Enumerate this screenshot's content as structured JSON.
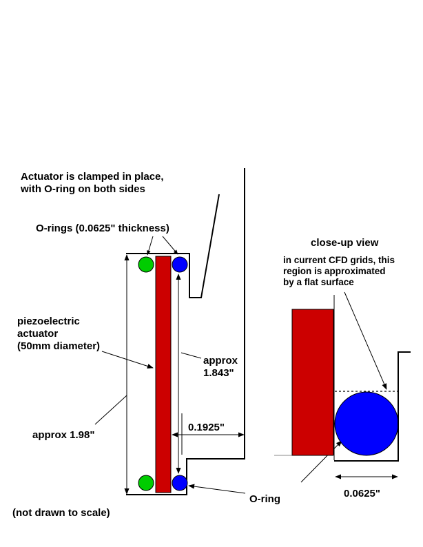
{
  "labels": {
    "clamp_line1": "Actuator is clamped in place,",
    "clamp_line2": "with O-ring on both sides",
    "orings_thickness": "O-rings (0.0625\" thickness)",
    "piezo_line1": "piezoelectric",
    "piezo_line2": "actuator",
    "piezo_line3": "(50mm diameter)",
    "approx_line1": "approx",
    "approx_line2": "1.843\"",
    "gap": "0.1925\"",
    "total_height": "approx 1.98\"",
    "not_to_scale": "(not drawn to scale)",
    "oring": "O-ring",
    "closeup_title": "close-up view",
    "cfd_line1": "in current CFD grids, this",
    "cfd_line2": "region is approximated",
    "cfd_line3": "by a flat surface",
    "closeup_dim": "0.0625\""
  },
  "colors": {
    "actuator": "#cc0000",
    "oring_left": "#00cc00",
    "oring_right": "#0000ff",
    "outline": "#000000"
  }
}
